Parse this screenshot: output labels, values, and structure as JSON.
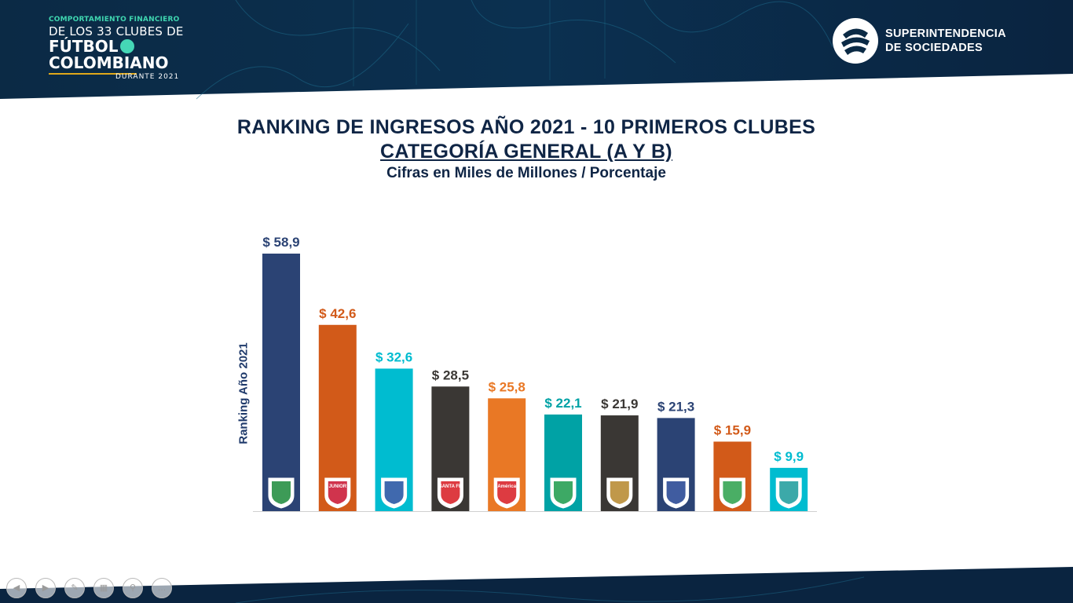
{
  "header": {
    "brand": {
      "line1": "COMPORTAMIENTO FINANCIERO",
      "line2": "DE LOS 33 CLUBES DE",
      "line3": "FÚTBOL",
      "line4": "COLOMBIANO",
      "line5": "DURANTE 2021"
    },
    "institution": {
      "line1": "SUPERINTENDENCIA",
      "line2": "DE SOCIEDADES"
    }
  },
  "chart_data": {
    "type": "bar",
    "title": "RANKING DE INGRESOS AÑO 2021 - 10 PRIMEROS CLUBES",
    "subtitle": "CATEGORÍA GENERAL (A Y B)",
    "subtitle2": "Cifras en Miles de Millones / Porcentaje",
    "ylabel": "Ranking Año 2021",
    "xlabel": "",
    "ylim": [
      0,
      58.9
    ],
    "grid": false,
    "legend": "none",
    "categories": [
      "",
      "",
      "",
      "",
      "",
      "",
      "",
      "",
      "",
      ""
    ],
    "values": [
      58.9,
      42.6,
      32.6,
      28.5,
      25.8,
      22.1,
      21.9,
      21.3,
      15.9,
      9.9
    ],
    "value_labels": [
      "$ 58,9",
      "$ 42,6",
      "$ 32,6",
      "$ 28,5",
      "$ 25,8",
      "$ 22,1",
      "$ 21,9",
      "$ 21,3",
      "$ 15,9",
      "$ 9,9"
    ],
    "bar_colors": [
      "#2b4374",
      "#d25a19",
      "#00bcd0",
      "#3a3734",
      "#e97825",
      "#00a2a5",
      "#3a3734",
      "#2b4374",
      "#d25a19",
      "#00bcd0"
    ],
    "badge_names": [
      "atletico-nacional-badge",
      "junior-badge",
      "millonarios-badge",
      "santa-fe-badge",
      "america-badge",
      "deportivo-cali-badge",
      "tolima-badge",
      "medellin-badge",
      "equidad-badge",
      "once-caldas-badge"
    ],
    "badge_texts": [
      "",
      "JUNIOR",
      "",
      "SANTA FE",
      "América",
      "",
      "",
      "",
      "",
      ""
    ]
  },
  "colors": {
    "navy": "#0f2545",
    "header_bg": "#0a2540",
    "teal_accent": "#3fd6b0",
    "gold_accent": "#e0a81a"
  },
  "controls": [
    "prev-icon",
    "next-icon",
    "pen-icon",
    "slides-icon",
    "zoom-icon",
    "more-icon"
  ]
}
